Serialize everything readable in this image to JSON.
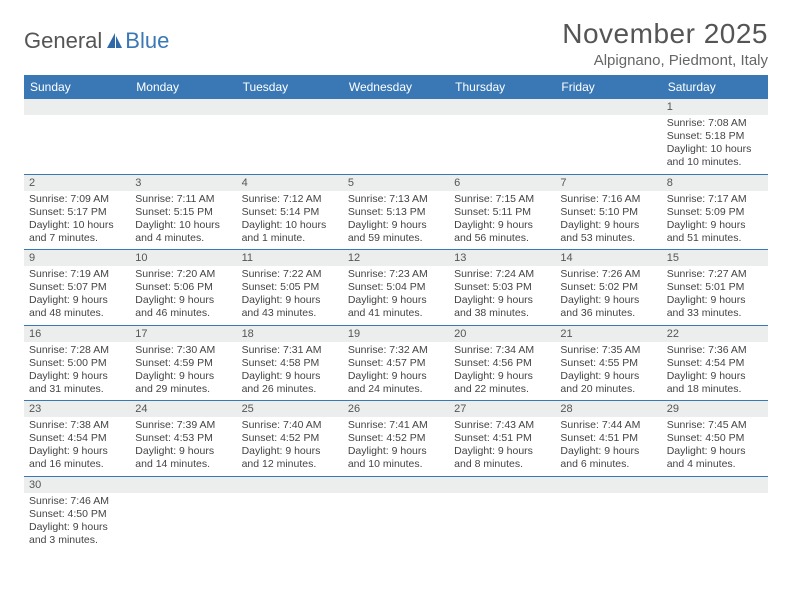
{
  "logo": {
    "part1": "General",
    "part2": "Blue"
  },
  "title": "November 2025",
  "location": "Alpignano, Piedmont, Italy",
  "colors": {
    "brand": "#3a78b5",
    "strip": "#eceeee",
    "text": "#444"
  },
  "dayHeaders": [
    "Sunday",
    "Monday",
    "Tuesday",
    "Wednesday",
    "Thursday",
    "Friday",
    "Saturday"
  ],
  "weeks": [
    [
      {
        "n": "",
        "l": []
      },
      {
        "n": "",
        "l": []
      },
      {
        "n": "",
        "l": []
      },
      {
        "n": "",
        "l": []
      },
      {
        "n": "",
        "l": []
      },
      {
        "n": "",
        "l": []
      },
      {
        "n": "1",
        "l": [
          "Sunrise: 7:08 AM",
          "Sunset: 5:18 PM",
          "Daylight: 10 hours",
          "and 10 minutes."
        ]
      }
    ],
    [
      {
        "n": "2",
        "l": [
          "Sunrise: 7:09 AM",
          "Sunset: 5:17 PM",
          "Daylight: 10 hours",
          "and 7 minutes."
        ]
      },
      {
        "n": "3",
        "l": [
          "Sunrise: 7:11 AM",
          "Sunset: 5:15 PM",
          "Daylight: 10 hours",
          "and 4 minutes."
        ]
      },
      {
        "n": "4",
        "l": [
          "Sunrise: 7:12 AM",
          "Sunset: 5:14 PM",
          "Daylight: 10 hours",
          "and 1 minute."
        ]
      },
      {
        "n": "5",
        "l": [
          "Sunrise: 7:13 AM",
          "Sunset: 5:13 PM",
          "Daylight: 9 hours",
          "and 59 minutes."
        ]
      },
      {
        "n": "6",
        "l": [
          "Sunrise: 7:15 AM",
          "Sunset: 5:11 PM",
          "Daylight: 9 hours",
          "and 56 minutes."
        ]
      },
      {
        "n": "7",
        "l": [
          "Sunrise: 7:16 AM",
          "Sunset: 5:10 PM",
          "Daylight: 9 hours",
          "and 53 minutes."
        ]
      },
      {
        "n": "8",
        "l": [
          "Sunrise: 7:17 AM",
          "Sunset: 5:09 PM",
          "Daylight: 9 hours",
          "and 51 minutes."
        ]
      }
    ],
    [
      {
        "n": "9",
        "l": [
          "Sunrise: 7:19 AM",
          "Sunset: 5:07 PM",
          "Daylight: 9 hours",
          "and 48 minutes."
        ]
      },
      {
        "n": "10",
        "l": [
          "Sunrise: 7:20 AM",
          "Sunset: 5:06 PM",
          "Daylight: 9 hours",
          "and 46 minutes."
        ]
      },
      {
        "n": "11",
        "l": [
          "Sunrise: 7:22 AM",
          "Sunset: 5:05 PM",
          "Daylight: 9 hours",
          "and 43 minutes."
        ]
      },
      {
        "n": "12",
        "l": [
          "Sunrise: 7:23 AM",
          "Sunset: 5:04 PM",
          "Daylight: 9 hours",
          "and 41 minutes."
        ]
      },
      {
        "n": "13",
        "l": [
          "Sunrise: 7:24 AM",
          "Sunset: 5:03 PM",
          "Daylight: 9 hours",
          "and 38 minutes."
        ]
      },
      {
        "n": "14",
        "l": [
          "Sunrise: 7:26 AM",
          "Sunset: 5:02 PM",
          "Daylight: 9 hours",
          "and 36 minutes."
        ]
      },
      {
        "n": "15",
        "l": [
          "Sunrise: 7:27 AM",
          "Sunset: 5:01 PM",
          "Daylight: 9 hours",
          "and 33 minutes."
        ]
      }
    ],
    [
      {
        "n": "16",
        "l": [
          "Sunrise: 7:28 AM",
          "Sunset: 5:00 PM",
          "Daylight: 9 hours",
          "and 31 minutes."
        ]
      },
      {
        "n": "17",
        "l": [
          "Sunrise: 7:30 AM",
          "Sunset: 4:59 PM",
          "Daylight: 9 hours",
          "and 29 minutes."
        ]
      },
      {
        "n": "18",
        "l": [
          "Sunrise: 7:31 AM",
          "Sunset: 4:58 PM",
          "Daylight: 9 hours",
          "and 26 minutes."
        ]
      },
      {
        "n": "19",
        "l": [
          "Sunrise: 7:32 AM",
          "Sunset: 4:57 PM",
          "Daylight: 9 hours",
          "and 24 minutes."
        ]
      },
      {
        "n": "20",
        "l": [
          "Sunrise: 7:34 AM",
          "Sunset: 4:56 PM",
          "Daylight: 9 hours",
          "and 22 minutes."
        ]
      },
      {
        "n": "21",
        "l": [
          "Sunrise: 7:35 AM",
          "Sunset: 4:55 PM",
          "Daylight: 9 hours",
          "and 20 minutes."
        ]
      },
      {
        "n": "22",
        "l": [
          "Sunrise: 7:36 AM",
          "Sunset: 4:54 PM",
          "Daylight: 9 hours",
          "and 18 minutes."
        ]
      }
    ],
    [
      {
        "n": "23",
        "l": [
          "Sunrise: 7:38 AM",
          "Sunset: 4:54 PM",
          "Daylight: 9 hours",
          "and 16 minutes."
        ]
      },
      {
        "n": "24",
        "l": [
          "Sunrise: 7:39 AM",
          "Sunset: 4:53 PM",
          "Daylight: 9 hours",
          "and 14 minutes."
        ]
      },
      {
        "n": "25",
        "l": [
          "Sunrise: 7:40 AM",
          "Sunset: 4:52 PM",
          "Daylight: 9 hours",
          "and 12 minutes."
        ]
      },
      {
        "n": "26",
        "l": [
          "Sunrise: 7:41 AM",
          "Sunset: 4:52 PM",
          "Daylight: 9 hours",
          "and 10 minutes."
        ]
      },
      {
        "n": "27",
        "l": [
          "Sunrise: 7:43 AM",
          "Sunset: 4:51 PM",
          "Daylight: 9 hours",
          "and 8 minutes."
        ]
      },
      {
        "n": "28",
        "l": [
          "Sunrise: 7:44 AM",
          "Sunset: 4:51 PM",
          "Daylight: 9 hours",
          "and 6 minutes."
        ]
      },
      {
        "n": "29",
        "l": [
          "Sunrise: 7:45 AM",
          "Sunset: 4:50 PM",
          "Daylight: 9 hours",
          "and 4 minutes."
        ]
      }
    ],
    [
      {
        "n": "30",
        "l": [
          "Sunrise: 7:46 AM",
          "Sunset: 4:50 PM",
          "Daylight: 9 hours",
          "and 3 minutes."
        ]
      },
      {
        "n": "",
        "l": []
      },
      {
        "n": "",
        "l": []
      },
      {
        "n": "",
        "l": []
      },
      {
        "n": "",
        "l": []
      },
      {
        "n": "",
        "l": []
      },
      {
        "n": "",
        "l": []
      }
    ]
  ]
}
